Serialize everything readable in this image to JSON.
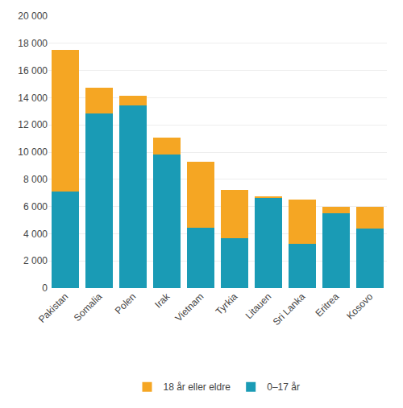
{
  "chart_data": {
    "type": "bar",
    "stacked": true,
    "categories": [
      "Pakistan",
      "Somalia",
      "Polen",
      "Irak",
      "Vietnam",
      "Tyrkia",
      "Litauen",
      "Sri Lanka",
      "Eritrea",
      "Kosovo"
    ],
    "series": [
      {
        "name": "0–17 år",
        "color": "#1a9bb5",
        "values": [
          7100,
          12850,
          13450,
          9800,
          4450,
          3650,
          6650,
          3250,
          5500,
          4400
        ]
      },
      {
        "name": "18 år eller eldre",
        "color": "#f5a623",
        "values": [
          10400,
          1900,
          700,
          1250,
          4850,
          3550,
          100,
          3250,
          500,
          1550
        ]
      }
    ],
    "ylim": [
      0,
      20000
    ],
    "yticks": [
      0,
      {
        "value": 2000,
        "label": "2 000"
      },
      {
        "value": 4000,
        "label": "4 000"
      },
      {
        "value": 6000,
        "label": "6 000"
      },
      {
        "value": 8000,
        "label": "8 000"
      },
      {
        "value": 10000,
        "label": "10 000"
      },
      {
        "value": 12000,
        "label": "12 000"
      },
      {
        "value": 14000,
        "label": "14 000"
      },
      {
        "value": 16000,
        "label": "16 000"
      },
      {
        "value": 18000,
        "label": "18 000"
      },
      {
        "value": 20000,
        "label": "20 000"
      }
    ],
    "grid": true,
    "legend": "bottom"
  }
}
